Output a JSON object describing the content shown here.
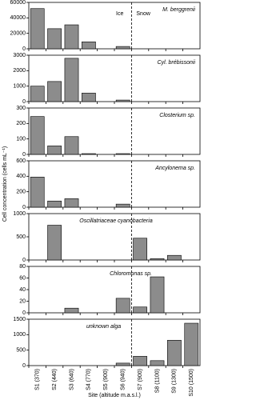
{
  "chart_data": [
    {
      "type": "bar",
      "title": "M. berggrenii",
      "ylabel": "Cell concentration (cells mL⁻¹)",
      "annotations": [
        "Ice",
        "Snow"
      ],
      "values": [
        52000,
        26000,
        31000,
        9000,
        0,
        3000,
        0,
        0,
        0,
        0
      ],
      "color": "#8c8c8c",
      "ylim": [
        0,
        60000
      ],
      "yticks": [
        0,
        20000,
        40000,
        60000
      ]
    },
    {
      "type": "bar",
      "title": "Cyl. brébissonii",
      "values": [
        1000,
        1300,
        2800,
        550,
        0,
        100,
        0,
        0,
        0,
        0
      ],
      "color": "#8c8c8c",
      "ylim": [
        0,
        3000
      ],
      "yticks": [
        0,
        1000,
        2000,
        3000
      ]
    },
    {
      "type": "bar",
      "title": "Closterium sp.",
      "values": [
        245,
        55,
        115,
        5,
        0,
        5,
        0,
        0,
        0,
        0
      ],
      "color": "#8c8c8c",
      "ylim": [
        0,
        300
      ],
      "yticks": [
        0,
        100,
        200,
        300
      ]
    },
    {
      "type": "bar",
      "title": "Ancylonema sp.",
      "values": [
        390,
        80,
        110,
        0,
        0,
        40,
        0,
        0,
        0,
        0
      ],
      "color": "#8c8c8c",
      "ylim": [
        0,
        600
      ],
      "yticks": [
        0,
        200,
        400,
        600
      ]
    },
    {
      "type": "bar",
      "title": "Oscillatriaceae cyanobacteria",
      "values": [
        0,
        750,
        0,
        0,
        0,
        0,
        470,
        30,
        100,
        0
      ],
      "color": "#8c8c8c",
      "ylim": [
        0,
        1000
      ],
      "yticks": [
        0,
        500,
        1000
      ]
    },
    {
      "type": "bar",
      "title": "Chloromonas sp.",
      "values": [
        0,
        0,
        8,
        0,
        0,
        25,
        10,
        62,
        0,
        0
      ],
      "color": "#8c8c8c",
      "ylim": [
        0,
        80
      ],
      "yticks": [
        0,
        20,
        40,
        60,
        80
      ]
    },
    {
      "type": "bar",
      "title": "unknown alga",
      "xlabel": "Site (altitude m.a.s.l.)",
      "categories": [
        "S1 (370)",
        "S2 (440)",
        "S3 (640)",
        "S4 (770)",
        "S5 (900)",
        "S6 (940)",
        "S7 (900)",
        "S8 (1100)",
        "S9 (1300)",
        "S10 (1500)"
      ],
      "values": [
        0,
        0,
        0,
        0,
        0,
        80,
        300,
        160,
        820,
        1370
      ],
      "color": "#8c8c8c",
      "ylim": [
        0,
        1500
      ],
      "yticks": [
        0,
        500,
        1000,
        1500
      ]
    }
  ]
}
